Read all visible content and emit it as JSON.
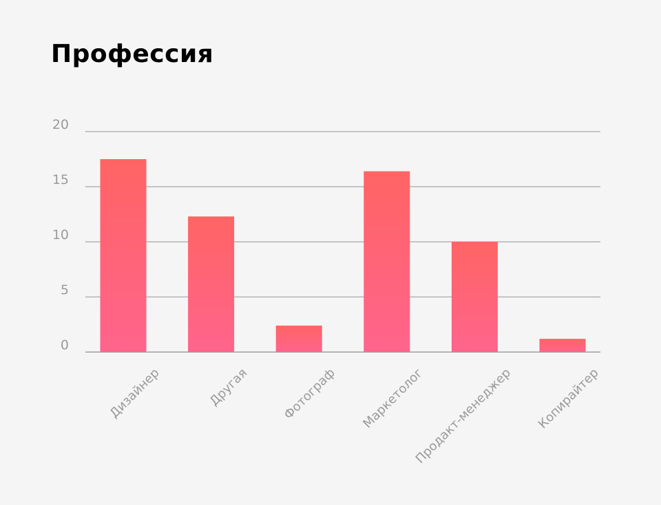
{
  "chart_data": {
    "type": "bar",
    "title": "Профессия",
    "categories": [
      "Дизайнер",
      "Другая",
      "Фотограф",
      "Маркетолог",
      "Продакт-менеджер",
      "Копирайтер"
    ],
    "values": [
      17.5,
      12.3,
      2.4,
      16.4,
      10.0,
      1.2
    ],
    "ylim": [
      0,
      20
    ],
    "yticks": [
      0,
      5,
      10,
      15,
      20
    ],
    "xlabel": "",
    "ylabel": "",
    "grid": true,
    "legend": "none",
    "colors": {
      "bar_top": "#ff6464",
      "bar_bottom": "#ff648c",
      "grid": "#b4b4b4",
      "tick_text": "#9a9a9a",
      "title_text": "#000000",
      "background": "#f5f5f5"
    }
  }
}
